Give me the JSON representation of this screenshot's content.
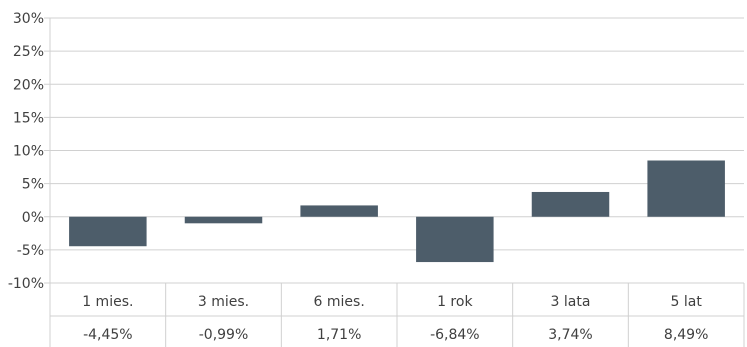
{
  "chart_data": {
    "type": "bar",
    "categories": [
      "1 mies.",
      "3 mies.",
      "6 mies.",
      "1 rok",
      "3 lata",
      "5 lat"
    ],
    "values": [
      -4.45,
      -0.99,
      1.71,
      -6.84,
      3.74,
      8.49
    ],
    "value_labels": [
      "-4,45%",
      "-0,99%",
      "1,71%",
      "-6,84%",
      "3,74%",
      "8,49%"
    ],
    "ylim": [
      -10,
      30
    ],
    "yticks": [
      30,
      25,
      20,
      15,
      10,
      5,
      0,
      -5,
      -10
    ],
    "ytick_labels": [
      "30%",
      "25%",
      "20%",
      "15%",
      "10%",
      "5%",
      "0%",
      "-5%",
      "-10%"
    ],
    "title": "",
    "xlabel": "",
    "ylabel": "",
    "grid": true,
    "legend": "none",
    "bar_color": "#4d5d6a",
    "grid_color": "#d0d0d0"
  }
}
